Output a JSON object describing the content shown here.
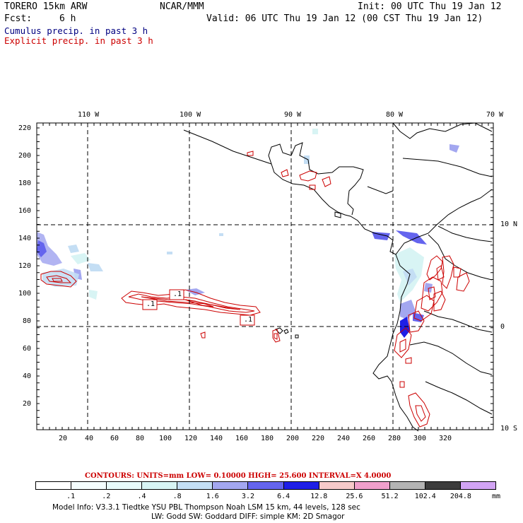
{
  "header": {
    "model_name": "TORERO  15km ARW",
    "org": "NCAR/MMM",
    "init": "Init: 00 UTC Thu 19 Jan 12",
    "fcst_label": "Fcst:",
    "fcst_value": "6 h",
    "valid": "Valid: 06 UTC Thu 19 Jan 12 (00 CST Thu 19 Jan 12)"
  },
  "legend": {
    "cumulus": "Cumulus precip. in past 3 h",
    "explicit": "Explicit precip. in past 3 h",
    "cumulus_color": "#000080",
    "explicit_color": "#cc0000"
  },
  "map": {
    "top_lon_labels": [
      "110 W",
      "100 W",
      "90 W",
      "80 W",
      "70 W"
    ],
    "right_lat_labels": [
      "10 N",
      "0",
      "10 S"
    ],
    "left_ticks": [
      "220",
      "200",
      "180",
      "160",
      "140",
      "120",
      "100",
      "80",
      "60",
      "40",
      "20"
    ],
    "bottom_ticks": [
      "20",
      "40",
      "60",
      "80",
      "100",
      "120",
      "140",
      "160",
      "180",
      "200",
      "220",
      "240",
      "260",
      "280",
      "300",
      "320"
    ],
    "contour_labels": [
      ".1",
      ".1",
      ".1"
    ]
  },
  "contours_line": "CONTOURS:  UNITS=mm  LOW= 0.10000      HIGH=  25.600      INTERVAL=X  4.0000",
  "colorbar": {
    "labels": [
      ".1",
      ".2",
      ".4",
      ".8",
      "1.6",
      "3.2",
      "6.4",
      "12.8",
      "25.6",
      "51.2",
      "102.4",
      "204.8"
    ],
    "unit": "mm",
    "colors": [
      "#ffffff",
      "#f4fdfd",
      "#e8fafa",
      "#d8f4f4",
      "#c4def4",
      "#a3a7f0",
      "#6464ee",
      "#1e1ee6",
      "#f6caca",
      "#f0a0cc",
      "#b4b4b4",
      "#3c3c3c",
      "#d2a4f4"
    ]
  },
  "footer": {
    "line1": "Model Info: V3.3.1    Tiedtke YSU PBL   Thompson     Noah LSM  15 km,    44 levels,  128 sec",
    "line2": "LW: Godd SW: Goddard DIFF: simple KM: 2D Smagor"
  }
}
